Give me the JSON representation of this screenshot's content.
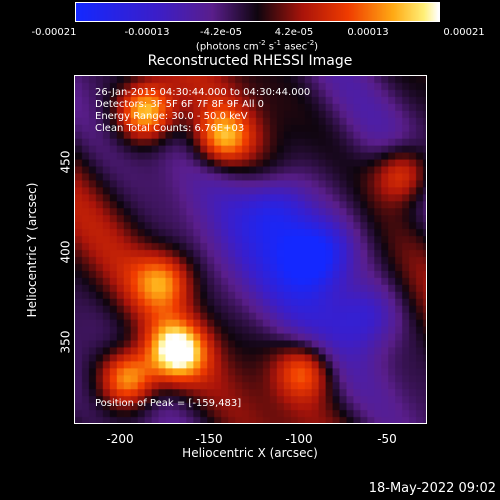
{
  "chart_data": {
    "type": "heatmap",
    "title": "Reconstructed RHESSI Image",
    "xlabel": "Heliocentric X (arcsec)",
    "ylabel": "Heliocentric Y (arcsec)",
    "xlim": [
      -225,
      -27
    ],
    "ylim": [
      300,
      495
    ],
    "x_ticks": [
      "-200",
      "-150",
      "-100",
      "-50"
    ],
    "y_ticks": [
      "450",
      "400",
      "350"
    ],
    "colorbar": {
      "ticks": [
        "-0.00021",
        "-0.00013",
        "-4.2e-05",
        "4.2e-05",
        "0.00013",
        "0.00021"
      ],
      "range": [
        -0.00021,
        0.00021
      ],
      "unit_text": "(photons cm",
      "unit_exp1": "-2",
      "unit_mid1": " s",
      "unit_exp2": "-1",
      "unit_mid2": " asec",
      "unit_exp3": "-2",
      "unit_end": ")"
    },
    "annotations": {
      "time": "26-Jan-2015 04:30:44.000 to 04:30:44.000",
      "detectors": "Detectors: 3F 5F 6F 7F 8F 9F All 0",
      "energy": "Energy Range: 30.0 - 50.0 keV",
      "method": "Clean     Total Counts: 6.76E+03",
      "position": "Position of Peak = [-159,483]"
    },
    "bright_features": [
      {
        "x": -185,
        "y": 475,
        "level": 1.0
      },
      {
        "x": -168,
        "y": 340,
        "level": 1.0
      },
      {
        "x": -195,
        "y": 325,
        "level": 0.9
      },
      {
        "x": -142,
        "y": 460,
        "level": 0.7
      },
      {
        "x": -40,
        "y": 440,
        "level": 0.7
      },
      {
        "x": -95,
        "y": 330,
        "level": 0.6
      },
      {
        "x": -175,
        "y": 380,
        "level": 0.6
      }
    ],
    "dim_features": [
      {
        "x": -90,
        "y": 395,
        "level": -1.0
      },
      {
        "x": -110,
        "y": 420,
        "level": -0.6
      },
      {
        "x": -60,
        "y": 360,
        "level": -0.5
      }
    ]
  },
  "timestamp": "18-May-2022 09:02"
}
